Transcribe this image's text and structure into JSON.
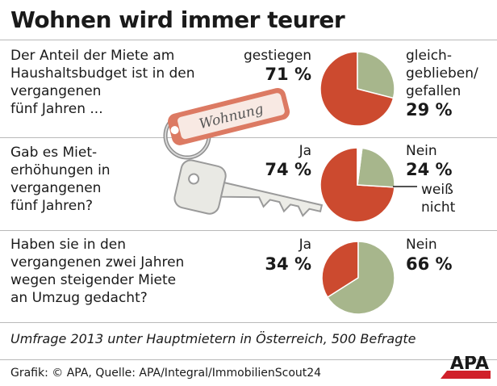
{
  "title": "Wohnen wird immer teurer",
  "key_tag_text": "Wohnung",
  "colors": {
    "orange": "#cc4a2f",
    "green": "#a7b68c",
    "rule": "#b9b9b9",
    "logo_red": "#d0202a"
  },
  "chart_data": [
    {
      "type": "pie",
      "question": [
        "Der Anteil der Miete am",
        "Haushaltsbudget ist in den",
        "vergangenen",
        "fünf Jahren ..."
      ],
      "slices": [
        {
          "label_lines": [
            "gestiegen"
          ],
          "value_text": "71 %",
          "value": 71,
          "color": "#cc4a2f"
        },
        {
          "label_lines": [
            "gleich-",
            "geblieben/",
            "gefallen"
          ],
          "value_text": "29 %",
          "value": 29,
          "color": "#a7b68c"
        }
      ]
    },
    {
      "type": "pie",
      "question": [
        "Gab es Miet-",
        "erhöhungen in",
        "vergangenen",
        "fünf Jahren?"
      ],
      "slices": [
        {
          "label_lines": [
            "Ja"
          ],
          "value_text": "74 %",
          "value": 74,
          "color": "#cc4a2f"
        },
        {
          "label_lines": [
            "Nein"
          ],
          "value_text": "24 %",
          "value": 24,
          "color": "#a7b68c"
        },
        {
          "label_lines": [
            "weiß",
            "nicht"
          ],
          "value": 2,
          "color": "#ffffff"
        }
      ]
    },
    {
      "type": "pie",
      "question": [
        "Haben sie in den",
        "vergangenen zwei Jahren",
        "wegen steigender Miete",
        "an Umzug gedacht?"
      ],
      "slices": [
        {
          "label_lines": [
            "Ja"
          ],
          "value_text": "34 %",
          "value": 34,
          "color": "#cc4a2f"
        },
        {
          "label_lines": [
            "Nein"
          ],
          "value_text": "66 %",
          "value": 66,
          "color": "#a7b68c"
        }
      ]
    }
  ],
  "source_note": "Umfrage 2013 unter Hauptmietern in Österreich, 500 Befragte",
  "credit": "Grafik: © APA, Quelle: APA/Integral/ImmobilienScout24",
  "logo": "APA"
}
